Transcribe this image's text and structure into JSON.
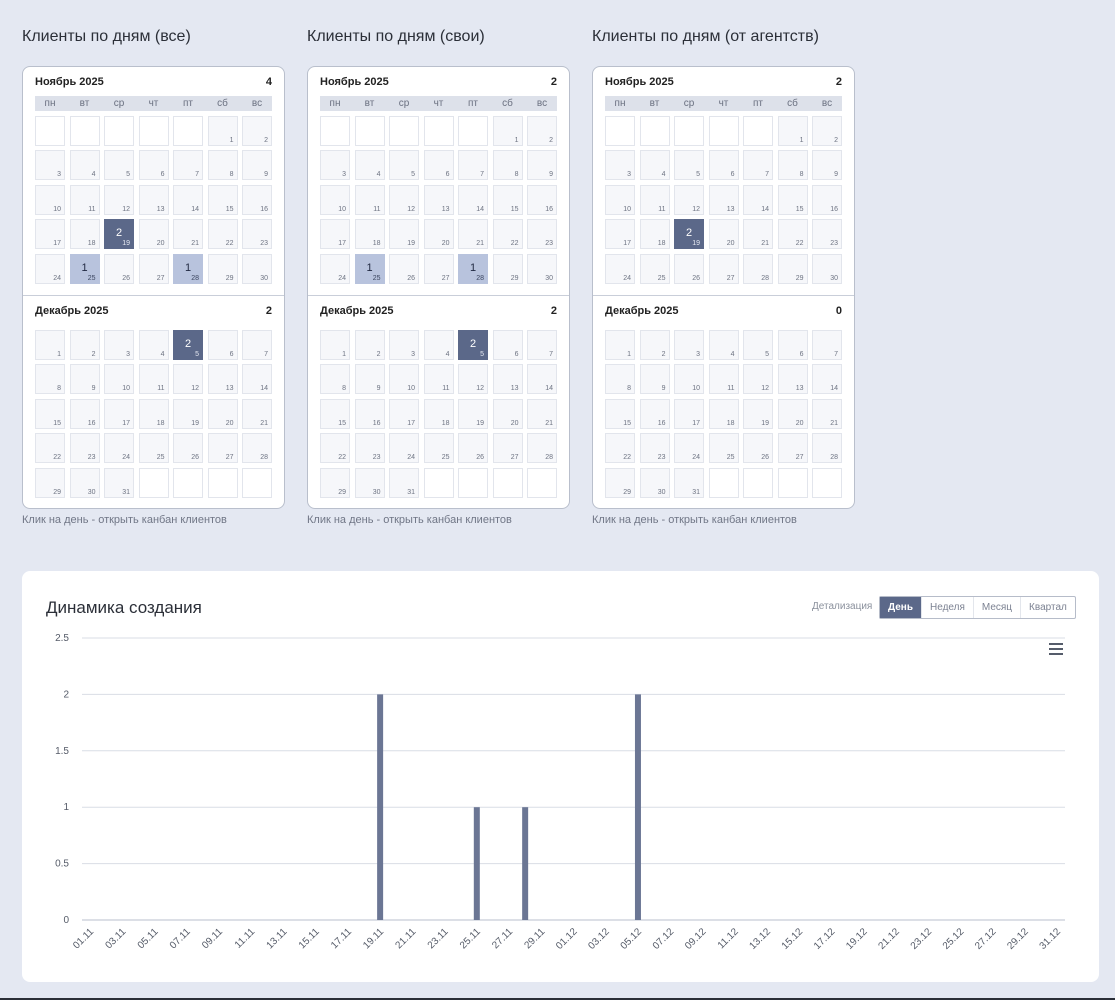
{
  "calendars": [
    {
      "title": "Клиенты по дням (все)",
      "hint": "Клик на день - открыть канбан клиентов",
      "months": [
        {
          "label": "Ноябрь 2025",
          "count": "4",
          "startOffset": 5,
          "days": 30,
          "counts": {
            "19": 2,
            "25": 1,
            "28": 1
          },
          "rows": 5
        },
        {
          "label": "Декабрь 2025",
          "count": "2",
          "startOffset": 0,
          "days": 31,
          "counts": {
            "5": 2
          },
          "rows": 5
        }
      ]
    },
    {
      "title": "Клиенты по дням (свои)",
      "hint": "Клик на день - открыть канбан клиентов",
      "months": [
        {
          "label": "Ноябрь 2025",
          "count": "2",
          "startOffset": 5,
          "days": 30,
          "counts": {
            "25": 1,
            "28": 1
          },
          "rows": 5
        },
        {
          "label": "Декабрь 2025",
          "count": "2",
          "startOffset": 0,
          "days": 31,
          "counts": {
            "5": 2
          },
          "rows": 5
        }
      ]
    },
    {
      "title": "Клиенты по дням (от агентств)",
      "hint": "Клик на день - открыть канбан клиентов",
      "months": [
        {
          "label": "Ноябрь 2025",
          "count": "2",
          "startOffset": 5,
          "days": 30,
          "counts": {
            "19": 2
          },
          "rows": 5
        },
        {
          "label": "Декабрь 2025",
          "count": "0",
          "startOffset": 0,
          "days": 31,
          "counts": {},
          "rows": 5
        }
      ]
    }
  ],
  "weekdays": [
    "пн",
    "вт",
    "ср",
    "чт",
    "пт",
    "сб",
    "вс"
  ],
  "dynamics": {
    "title": "Динамика создания",
    "detail_label": "Детализация",
    "tabs": [
      "День",
      "Неделя",
      "Месяц",
      "Квартал"
    ],
    "active_tab": "День",
    "menu_icon": "hamburger-menu-icon"
  },
  "chart_data": {
    "type": "bar",
    "title": "",
    "xlabel": "",
    "ylabel": "",
    "ylim": [
      0,
      2.5
    ],
    "yticks": [
      "0",
      "0.5",
      "1",
      "1.5",
      "2",
      "2.5"
    ],
    "categories": [
      "01.11",
      "02.11",
      "03.11",
      "04.11",
      "05.11",
      "06.11",
      "07.11",
      "08.11",
      "09.11",
      "10.11",
      "11.11",
      "12.11",
      "13.11",
      "14.11",
      "15.11",
      "16.11",
      "17.11",
      "18.11",
      "19.11",
      "20.11",
      "21.11",
      "22.11",
      "23.11",
      "24.11",
      "25.11",
      "26.11",
      "27.11",
      "28.11",
      "29.11",
      "30.11",
      "01.12",
      "02.12",
      "03.12",
      "04.12",
      "05.12",
      "06.12",
      "07.12",
      "08.12",
      "09.12",
      "10.12",
      "11.12",
      "12.12",
      "13.12",
      "14.12",
      "15.12",
      "16.12",
      "17.12",
      "18.12",
      "19.12",
      "20.12",
      "21.12",
      "22.12",
      "23.12",
      "24.12",
      "25.12",
      "26.12",
      "27.12",
      "28.12",
      "29.12",
      "30.12",
      "31.12"
    ],
    "xtick_labels": [
      "01.11",
      "03.11",
      "05.11",
      "07.11",
      "09.11",
      "11.11",
      "13.11",
      "15.11",
      "17.11",
      "19.11",
      "21.11",
      "23.11",
      "25.11",
      "27.11",
      "29.11",
      "01.12",
      "03.12",
      "05.12",
      "07.12",
      "09.12",
      "11.12",
      "13.12",
      "15.12",
      "17.12",
      "19.12",
      "21.12",
      "23.12",
      "25.12",
      "27.12",
      "29.12",
      "31.12"
    ],
    "values": [
      0,
      0,
      0,
      0,
      0,
      0,
      0,
      0,
      0,
      0,
      0,
      0,
      0,
      0,
      0,
      0,
      0,
      0,
      2,
      0,
      0,
      0,
      0,
      0,
      1,
      0,
      0,
      1,
      0,
      0,
      0,
      0,
      0,
      0,
      2,
      0,
      0,
      0,
      0,
      0,
      0,
      0,
      0,
      0,
      0,
      0,
      0,
      0,
      0,
      0,
      0,
      0,
      0,
      0,
      0,
      0,
      0,
      0,
      0,
      0,
      0
    ],
    "bar_color": "#6b7694",
    "grid": true
  }
}
